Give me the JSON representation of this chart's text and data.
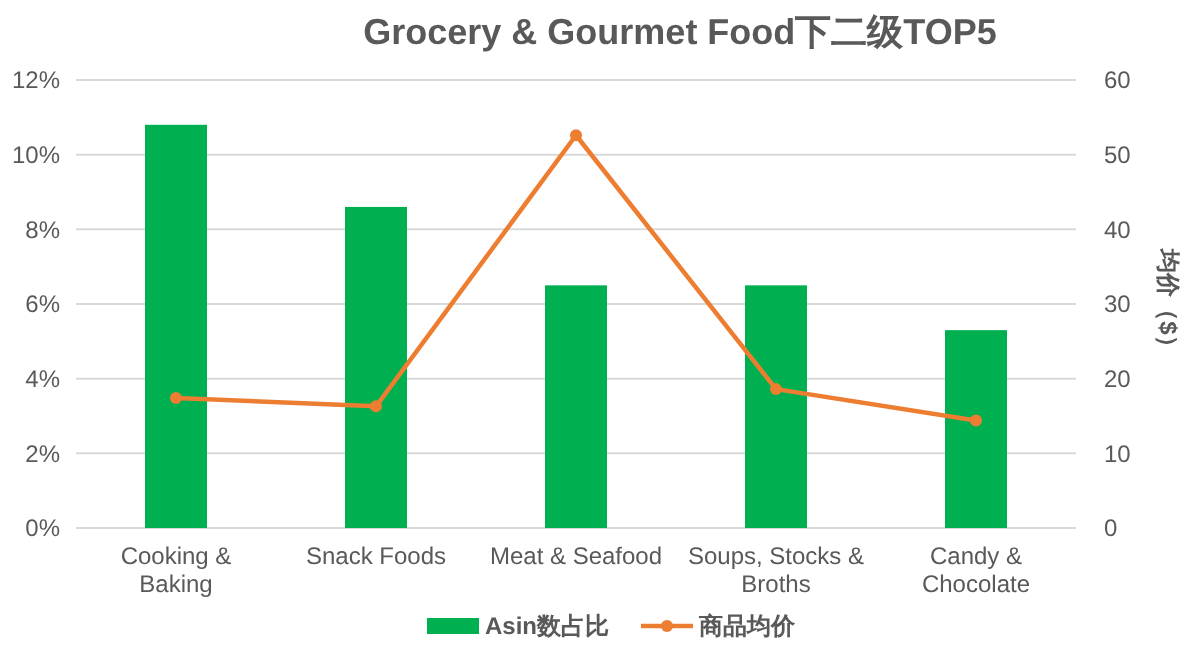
{
  "chart_data": {
    "type": "bar",
    "title": "Grocery & Gourmet Food下二级TOP5",
    "y2label": "均价（$）",
    "categories": [
      "Cooking & Baking",
      "Snack Foods",
      "Meat & Seafood",
      "Soups, Stocks & Broths",
      "Candy & Chocolate"
    ],
    "series": [
      {
        "name": "Asin数占比",
        "color": "#00b050",
        "values": [
          10.8,
          8.6,
          6.5,
          6.5,
          5.3
        ]
      },
      {
        "name": "商品均价",
        "type": "line",
        "axis": "y2",
        "color": "#ed7d31",
        "marker": "circle",
        "values": [
          17.4,
          16.3,
          52.6,
          18.6,
          14.4
        ]
      }
    ],
    "ylim": [
      0,
      12
    ],
    "yticks": [
      {
        "value": 0,
        "label": "0%"
      },
      {
        "value": 2,
        "label": "2%"
      },
      {
        "value": 4,
        "label": "4%"
      },
      {
        "value": 6,
        "label": "6%"
      },
      {
        "value": 8,
        "label": "8%"
      },
      {
        "value": 10,
        "label": "10%"
      },
      {
        "value": 12,
        "label": "12%"
      }
    ],
    "y2lim": [
      0,
      60
    ],
    "y2ticks": [
      0,
      10,
      20,
      30,
      40,
      50,
      60
    ],
    "grid": "y",
    "legend": "bottom"
  }
}
